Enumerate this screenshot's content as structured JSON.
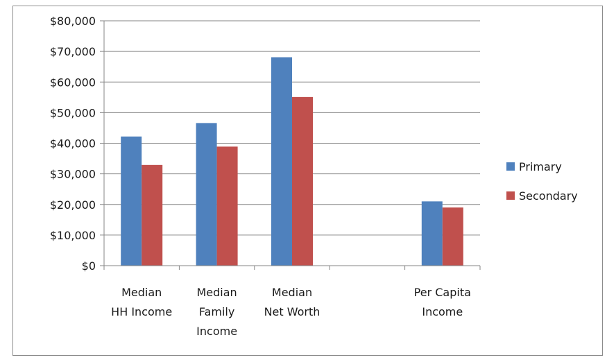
{
  "chart_data": {
    "type": "bar",
    "categories": [
      [
        "Median",
        "HH Income"
      ],
      [
        "Median",
        "Family",
        "Income"
      ],
      [
        "Median",
        "Net Worth"
      ],
      [],
      [
        "Per Capita",
        "Income"
      ]
    ],
    "series": [
      {
        "name": "Primary",
        "color": "#4F81BD",
        "values": [
          42200,
          46600,
          68100,
          null,
          21000
        ]
      },
      {
        "name": "Secondary",
        "color": "#C0504D",
        "values": [
          32900,
          38900,
          55100,
          null,
          19000
        ]
      }
    ],
    "y_ticks": [
      "$0",
      "$10,000",
      "$20,000",
      "$30,000",
      "$40,000",
      "$50,000",
      "$60,000",
      "$70,000",
      "$80,000"
    ],
    "ylim": [
      0,
      80000
    ],
    "y_step": 10000,
    "grid": true,
    "legend_position": "right",
    "title": "",
    "xlabel": "",
    "ylabel": ""
  }
}
